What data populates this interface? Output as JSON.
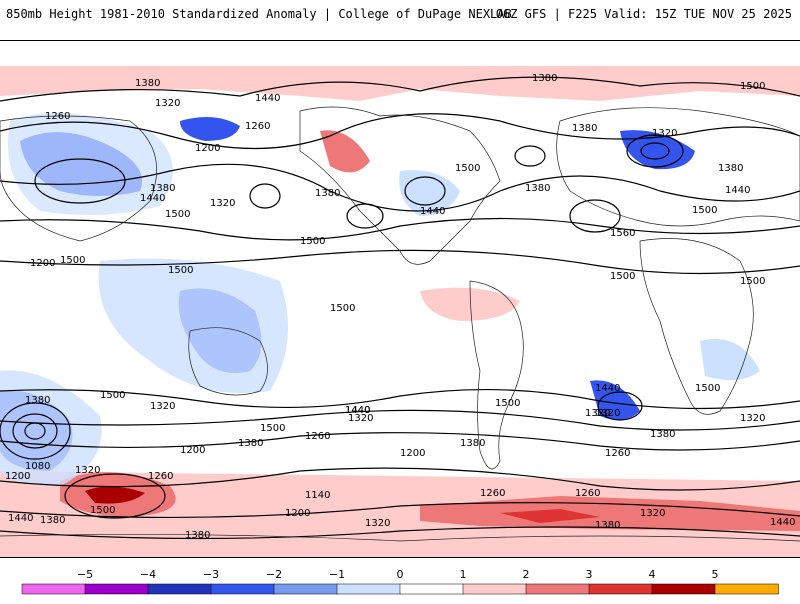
{
  "header": {
    "title_left": "850mb Height 1981-2010 Standardized Anomaly | College of DuPage NEXLAB",
    "title_right": "06Z GFS | F225 Valid: 15Z TUE NOV 25 2025"
  },
  "map": {
    "variable": "850mb Height Standardized Anomaly",
    "contour_labels": [
      "1380",
      "1440",
      "1320",
      "1260",
      "1200",
      "1380",
      "1440",
      "1500",
      "1200",
      "1320",
      "1260",
      "1380",
      "1500",
      "1440",
      "1500",
      "1380",
      "1500",
      "1320",
      "1380",
      "1440",
      "1560",
      "1500",
      "1500",
      "1500",
      "1500",
      "1500",
      "1380",
      "1320",
      "1500",
      "1440",
      "1320",
      "1260",
      "1200",
      "1320",
      "1440",
      "1500",
      "1380",
      "1080",
      "1200",
      "1320",
      "1260",
      "1440",
      "1500",
      "1380",
      "1140",
      "1200",
      "1260",
      "1500",
      "1320",
      "1440",
      "1320",
      "1260",
      "1380",
      "1320",
      "1380",
      "1440",
      "1380",
      "1380",
      "1500",
      "1500",
      "1200",
      "1380",
      "1260",
      "1320",
      "1380"
    ]
  },
  "colorbar": {
    "ticks": [
      "−5",
      "−4",
      "−3",
      "−2",
      "−1",
      "0",
      "1",
      "2",
      "3",
      "4",
      "5"
    ],
    "colors": [
      "#ee66ee",
      "#9900cc",
      "#2233bb",
      "#3355ee",
      "#7799ee",
      "#cce0ff",
      "#ffffff",
      "#ffcccc",
      "#ee7777",
      "#dd3333",
      "#aa0000",
      "#ffaa00"
    ]
  }
}
